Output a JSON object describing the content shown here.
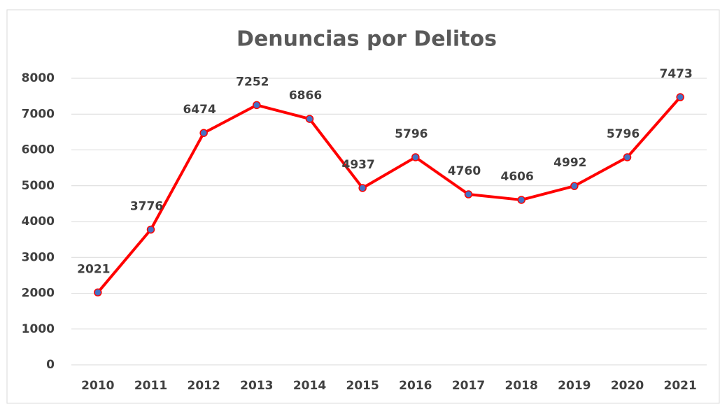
{
  "chart_data": {
    "type": "line",
    "title": "Denuncias por Delitos",
    "categories": [
      "2010",
      "2011",
      "2012",
      "2013",
      "2014",
      "2015",
      "2016",
      "2017",
      "2018",
      "2019",
      "2020",
      "2021"
    ],
    "values": [
      2021,
      3776,
      6474,
      7252,
      6866,
      4937,
      5796,
      4760,
      4606,
      4992,
      5796,
      7473
    ],
    "color": "#ff0000",
    "marker_color": "#4472c4",
    "ylim": [
      0,
      8000
    ],
    "yticks": [
      0,
      1000,
      2000,
      3000,
      4000,
      5000,
      6000,
      7000,
      8000
    ],
    "grid": true
  }
}
